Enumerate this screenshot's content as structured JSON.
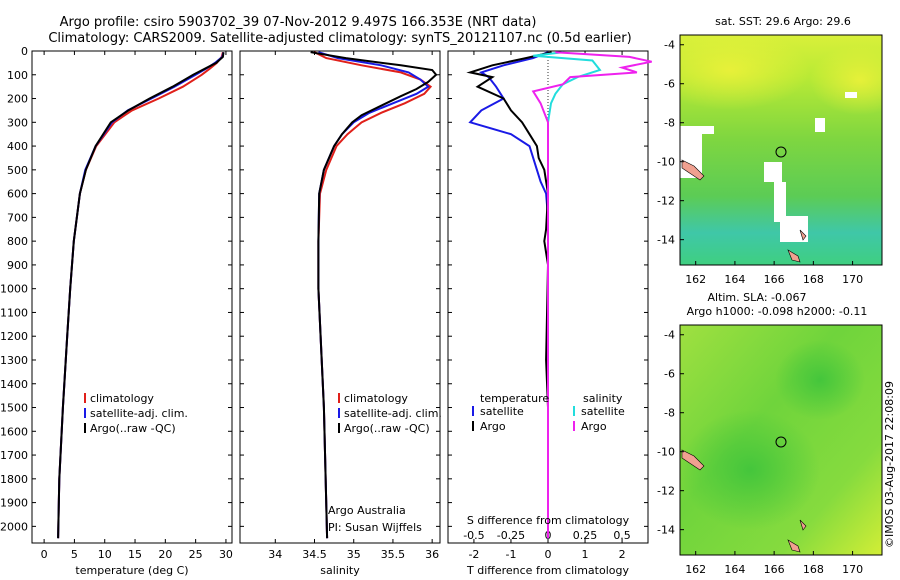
{
  "header": {
    "line1": "Argo profile: csiro 5903702_39 07-Nov-2012 9.497S 166.353E (NRT data)",
    "line2": "Climatology: CARS2009. Satellite-adjusted climatology: synTS_20121107.nc (0.5d earlier)"
  },
  "depth_ticks": [
    "0",
    "100",
    "200",
    "300",
    "400",
    "500",
    "600",
    "700",
    "800",
    "900",
    "1000",
    "1100",
    "1200",
    "1300",
    "1400",
    "1500",
    "1600",
    "1700",
    "1800",
    "1900",
    "2000"
  ],
  "colors": {
    "clim": "#e0201a",
    "sat": "#1a1ae6",
    "argo": "#000000",
    "sat_s": "#22dddd",
    "argo_s": "#ee22ee",
    "land": "#f0a090"
  },
  "credit": "©IMOS 03-Aug-2017 22:08:09",
  "chart_data": [
    {
      "id": "temperature",
      "type": "line",
      "xlabel": "temperature (deg C)",
      "xticks": [
        "0",
        "5",
        "10",
        "15",
        "20",
        "25",
        "30"
      ],
      "xlim": [
        -2,
        31
      ],
      "ylim": [
        2070,
        0
      ],
      "legend": [
        "climatology",
        "satellite-adj. clim.",
        "Argo(..raw -QC)"
      ],
      "series": [
        {
          "name": "climatology",
          "depth": [
            5,
            25,
            50,
            75,
            100,
            150,
            200,
            250,
            300,
            400,
            500,
            600,
            800,
            1000,
            1200,
            1500,
            1800,
            2050
          ],
          "values": [
            29.5,
            29.3,
            28.5,
            27.3,
            26.0,
            22.9,
            18.9,
            14.5,
            11.6,
            8.6,
            6.9,
            5.9,
            4.9,
            4.3,
            3.8,
            3.1,
            2.5,
            2.3
          ]
        },
        {
          "name": "satellite-adj. clim.",
          "depth": [
            5,
            25,
            50,
            75,
            100,
            150,
            200,
            250,
            300,
            400,
            500,
            600,
            800,
            1000,
            1200,
            1500,
            1800,
            2050
          ],
          "values": [
            29.6,
            29.4,
            28.2,
            26.7,
            25.0,
            21.5,
            17.7,
            13.8,
            11.2,
            8.5,
            6.8,
            5.9,
            4.9,
            4.3,
            3.8,
            3.1,
            2.5,
            2.3
          ]
        },
        {
          "name": "Argo(..raw -QC)",
          "depth": [
            5,
            25,
            50,
            75,
            100,
            150,
            200,
            250,
            300,
            400,
            500,
            600,
            800,
            1000,
            1200,
            1500,
            1800,
            2050
          ],
          "values": [
            29.6,
            29.5,
            28.4,
            26.5,
            24.6,
            21.2,
            17.4,
            13.9,
            11.0,
            8.5,
            6.9,
            5.9,
            4.9,
            4.3,
            3.8,
            3.1,
            2.5,
            2.3
          ]
        }
      ]
    },
    {
      "id": "salinity",
      "type": "line",
      "xlabel": "salinity",
      "xticks": [
        "34",
        "34.5",
        "35",
        "35.5",
        "36"
      ],
      "xlim": [
        33.55,
        36.1
      ],
      "ylim": [
        2070,
        0
      ],
      "legend": [
        "climatology",
        "satellite-adj. clim.",
        "Argo(..raw -QC)"
      ],
      "annotation": [
        "Argo Australia",
        "PI: Susan Wijffels"
      ],
      "series": [
        {
          "name": "climatology",
          "depth": [
            5,
            30,
            60,
            90,
            120,
            150,
            180,
            220,
            260,
            300,
            350,
            400,
            500,
            600,
            800,
            1000,
            1500,
            2050
          ],
          "values": [
            34.5,
            34.65,
            35.1,
            35.6,
            35.85,
            35.98,
            35.9,
            35.65,
            35.35,
            35.1,
            34.92,
            34.78,
            34.65,
            34.57,
            34.55,
            34.55,
            34.62,
            34.66
          ]
        },
        {
          "name": "satellite-adj. clim.",
          "depth": [
            5,
            30,
            60,
            90,
            120,
            150,
            180,
            220,
            260,
            300,
            350,
            400,
            500,
            600,
            800,
            1000,
            1500,
            2050
          ],
          "values": [
            34.55,
            34.8,
            35.35,
            35.7,
            35.85,
            35.95,
            35.8,
            35.5,
            35.2,
            35.0,
            34.85,
            34.75,
            34.62,
            34.56,
            34.55,
            34.55,
            34.62,
            34.66
          ]
        },
        {
          "name": "Argo(..raw -QC)",
          "depth": [
            5,
            30,
            60,
            80,
            100,
            130,
            160,
            190,
            230,
            270,
            300,
            350,
            400,
            500,
            600,
            800,
            1000,
            1500,
            2050
          ],
          "values": [
            34.45,
            34.9,
            35.6,
            36.0,
            36.05,
            35.95,
            35.8,
            35.6,
            35.35,
            35.1,
            34.98,
            34.85,
            34.75,
            34.62,
            34.56,
            34.55,
            34.55,
            34.62,
            34.66
          ]
        }
      ]
    },
    {
      "id": "difference",
      "type": "line",
      "xlabel": "T difference from climatology",
      "xlabel_top": "S difference from climatology",
      "xticks": [
        "-2",
        "-1",
        "0",
        "1",
        "2"
      ],
      "sticks": [
        "-0.5",
        "-0.25",
        "0",
        "0.25",
        "0.5"
      ],
      "xlim": [
        -2.7,
        2.7
      ],
      "ylim": [
        2070,
        0
      ],
      "legend_heading": [
        "temperature",
        "salinity"
      ],
      "legend": [
        "satellite",
        "Argo",
        "satellite",
        "Argo"
      ],
      "series": [
        {
          "name": "satellite",
          "kind": "T",
          "depth": [
            5,
            30,
            60,
            90,
            110,
            150,
            200,
            250,
            300,
            350,
            400,
            500,
            550,
            600,
            700,
            900,
            1200,
            2050
          ],
          "values": [
            0.0,
            -0.4,
            -1.2,
            -1.8,
            -1.6,
            -1.4,
            -1.2,
            -1.8,
            -2.1,
            -1.0,
            -0.5,
            -0.3,
            -0.2,
            -0.05,
            0.0,
            0.0,
            0.0,
            0.0
          ]
        },
        {
          "name": "Argo",
          "kind": "T",
          "depth": [
            5,
            30,
            60,
            90,
            110,
            150,
            200,
            250,
            300,
            350,
            400,
            450,
            500,
            600,
            750,
            800,
            900,
            1300,
            1500,
            2050
          ],
          "values": [
            0.1,
            -0.6,
            -1.5,
            -2.1,
            -1.5,
            -1.9,
            -1.2,
            -1.0,
            -0.7,
            -0.5,
            -0.3,
            -0.25,
            -0.1,
            0.0,
            -0.05,
            -0.1,
            0.0,
            -0.05,
            0.0,
            0.0
          ]
        },
        {
          "name": "satellite",
          "kind": "S",
          "depth": [
            5,
            20,
            40,
            80,
            110,
            140,
            180,
            220,
            300,
            500,
            2050
          ],
          "values": [
            0.1,
            -0.1,
            0.3,
            0.35,
            0.2,
            0.1,
            0.05,
            0.02,
            0.0,
            0.0,
            0.0
          ]
        },
        {
          "name": "Argo",
          "kind": "S",
          "depth": [
            5,
            25,
            45,
            70,
            90,
            110,
            140,
            170,
            220,
            300,
            500,
            2050
          ],
          "values": [
            0.05,
            0.55,
            0.7,
            0.5,
            0.6,
            0.15,
            0.1,
            -0.1,
            -0.05,
            0.0,
            0.0,
            0.0
          ]
        }
      ]
    },
    {
      "id": "sst_map",
      "type": "heatmap",
      "title": "sat. SST: 29.6  Argo: 29.6",
      "xticks": [
        "162",
        "164",
        "166",
        "168",
        "170"
      ],
      "yticks": [
        "-4",
        "-6",
        "-8",
        "-10",
        "-12",
        "-14"
      ],
      "xlim": [
        161.2,
        171.5
      ],
      "ylim": [
        -15.3,
        -3.5
      ],
      "marker": {
        "lon": 166.35,
        "lat": -9.5
      }
    },
    {
      "id": "sla_map",
      "type": "heatmap",
      "title": "Altim. SLA: -0.067",
      "subtitle": "Argo h1000: -0.098 h2000: -0.11",
      "xticks": [
        "162",
        "164",
        "166",
        "168",
        "170"
      ],
      "yticks": [
        "-4",
        "-6",
        "-8",
        "-10",
        "-12",
        "-14"
      ],
      "xlim": [
        161.2,
        171.5
      ],
      "ylim": [
        -15.3,
        -3.5
      ],
      "marker": {
        "lon": 166.35,
        "lat": -9.5
      }
    }
  ]
}
